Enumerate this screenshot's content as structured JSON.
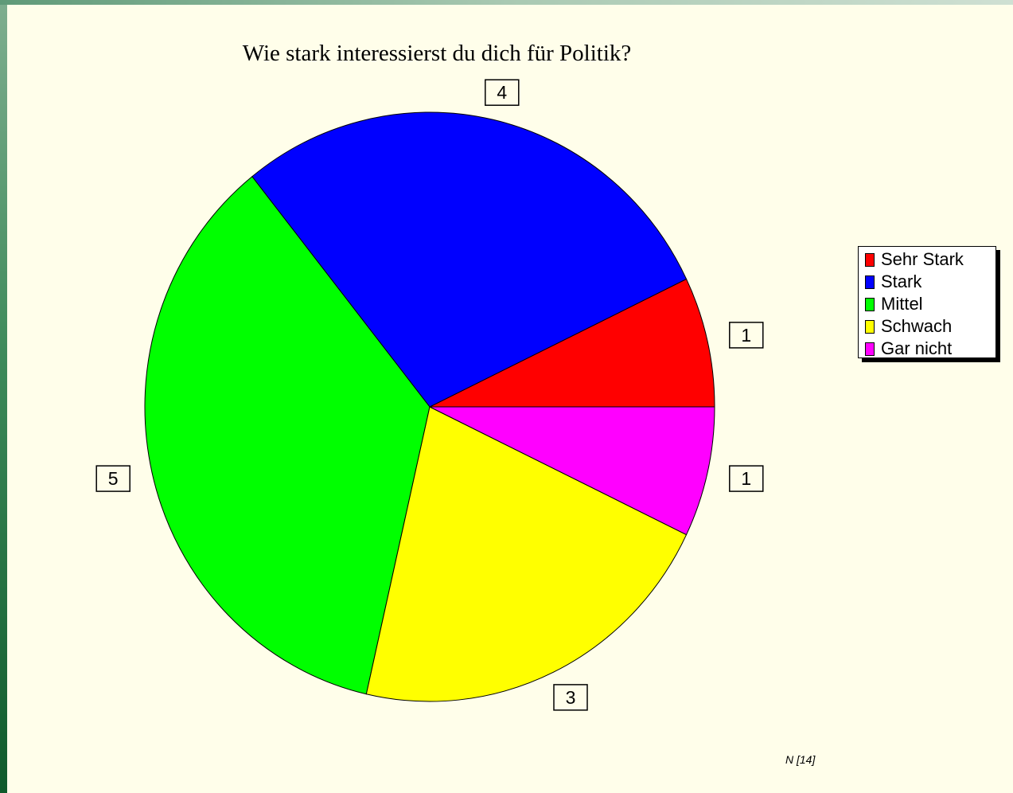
{
  "chart_data": {
    "type": "pie",
    "title": "Wie stark interessierst du dich für Politik?",
    "categories": [
      "Sehr Stark",
      "Stark",
      "Mittel",
      "Schwach",
      "Gar nicht"
    ],
    "values": [
      1,
      4,
      5,
      3,
      1
    ],
    "colors": [
      "#ff0000",
      "#0000ff",
      "#00ff00",
      "#ffff00",
      "#ff00ff"
    ],
    "legend": "right",
    "footnote": "N [14]"
  }
}
